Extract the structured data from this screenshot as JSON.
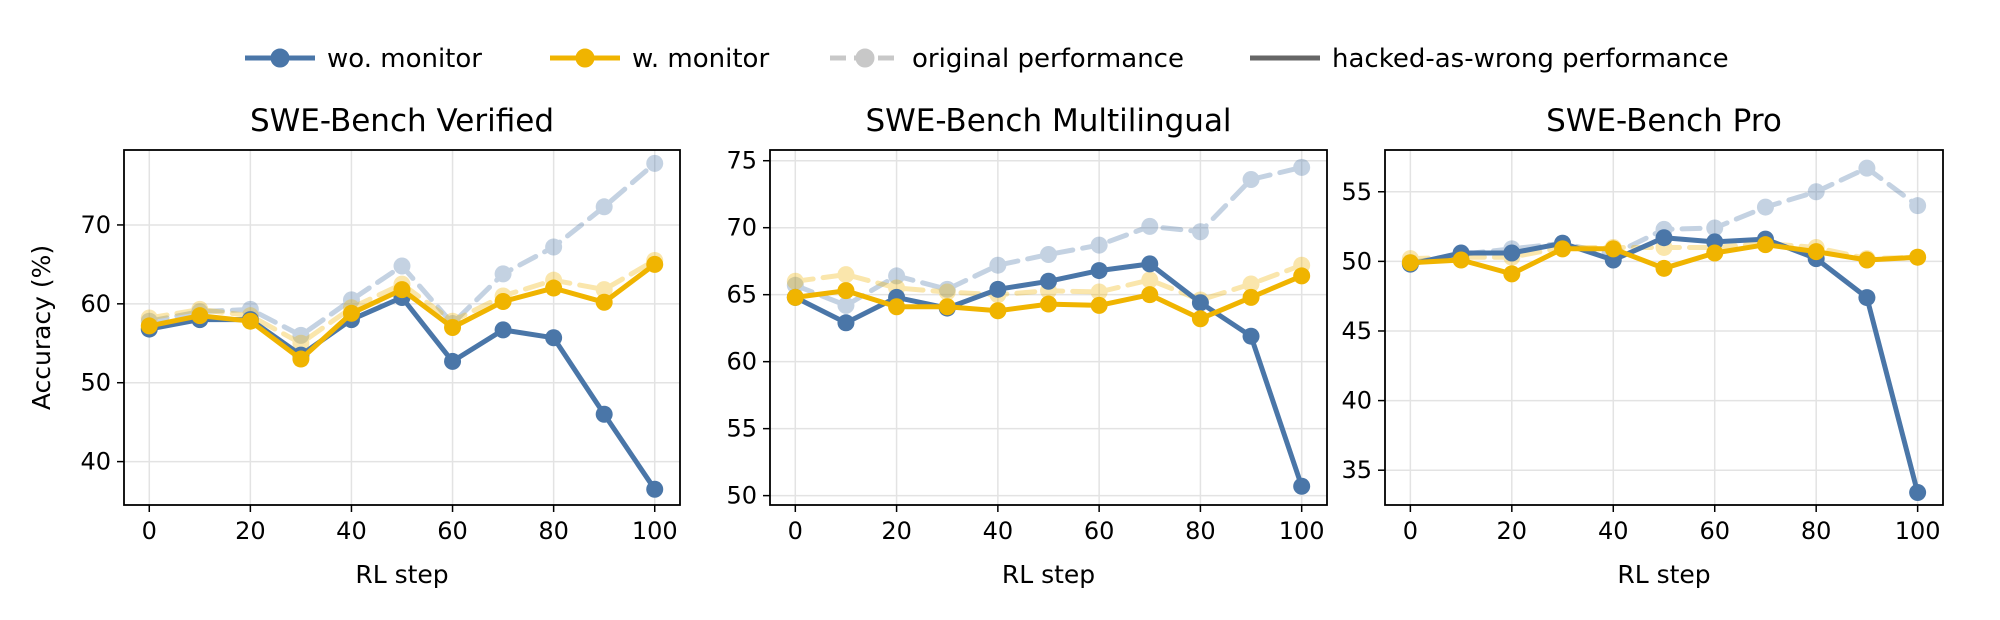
{
  "legend": [
    {
      "label": "wo. monitor",
      "color": "#4a76a8",
      "style": "solid",
      "alpha": 1
    },
    {
      "label": "w. monitor",
      "color": "#f0b400",
      "style": "solid",
      "alpha": 1
    },
    {
      "label": "original performance",
      "color": "#c8c8c8",
      "style": "dashed",
      "alpha": 1
    },
    {
      "label": "hacked-as-wrong performance",
      "color": "#666666",
      "style": "solid",
      "alpha": 1
    }
  ],
  "chart_data": [
    {
      "type": "line",
      "title": "SWE-Bench Verified",
      "xlabel": "RL step",
      "ylabel": "Accuracy (%)",
      "x": [
        0,
        10,
        20,
        30,
        40,
        50,
        60,
        70,
        80,
        90,
        100
      ],
      "xlim": [
        -5,
        105
      ],
      "ylim": [
        34.5,
        79.5
      ],
      "xticks": [
        0,
        20,
        40,
        60,
        80,
        100
      ],
      "yticks": [
        40,
        50,
        60,
        70
      ],
      "grid": true,
      "series": [
        {
          "name": "wo. monitor",
          "kind": "original",
          "values": [
            57.8,
            59.0,
            59.3,
            56.0,
            60.5,
            64.8,
            57.5,
            63.8,
            67.2,
            72.3,
            77.8
          ]
        },
        {
          "name": "w. monitor",
          "kind": "original",
          "values": [
            58.2,
            59.3,
            58.5,
            55.0,
            59.5,
            62.5,
            57.8,
            61.0,
            63.0,
            61.8,
            65.5
          ]
        },
        {
          "name": "wo. monitor",
          "kind": "hacked",
          "values": [
            56.8,
            58.0,
            58.0,
            53.5,
            58.0,
            60.8,
            52.7,
            56.7,
            55.7,
            46.0,
            36.5
          ]
        },
        {
          "name": "w. monitor",
          "kind": "hacked",
          "values": [
            57.2,
            58.5,
            57.8,
            53.0,
            58.8,
            61.8,
            57.0,
            60.3,
            62.0,
            60.2,
            65.0
          ]
        }
      ]
    },
    {
      "type": "line",
      "title": "SWE-Bench Multilingual",
      "xlabel": "RL step",
      "ylabel": "",
      "x": [
        0,
        10,
        20,
        30,
        40,
        50,
        60,
        70,
        80,
        90,
        100
      ],
      "xlim": [
        -5,
        105
      ],
      "ylim": [
        49.3,
        75.8
      ],
      "xticks": [
        0,
        20,
        40,
        60,
        80,
        100
      ],
      "yticks": [
        50,
        55,
        60,
        65,
        70,
        75
      ],
      "grid": true,
      "series": [
        {
          "name": "wo. monitor",
          "kind": "original",
          "values": [
            65.7,
            64.2,
            66.4,
            65.4,
            67.2,
            68.0,
            68.7,
            70.1,
            69.7,
            73.6,
            74.5
          ]
        },
        {
          "name": "w. monitor",
          "kind": "original",
          "values": [
            66.0,
            66.5,
            65.5,
            65.2,
            65.0,
            65.3,
            65.2,
            66.1,
            64.6,
            65.8,
            67.2
          ]
        },
        {
          "name": "wo. monitor",
          "kind": "hacked",
          "values": [
            64.8,
            62.9,
            64.8,
            64.0,
            65.4,
            66.0,
            66.8,
            67.3,
            64.4,
            61.9,
            50.7
          ]
        },
        {
          "name": "w. monitor",
          "kind": "hacked",
          "values": [
            64.8,
            65.3,
            64.1,
            64.1,
            63.8,
            64.3,
            64.2,
            65.0,
            63.2,
            64.8,
            66.4
          ]
        }
      ]
    },
    {
      "type": "line",
      "title": "SWE-Bench Pro",
      "xlabel": "RL step",
      "ylabel": "",
      "x": [
        0,
        10,
        20,
        30,
        40,
        50,
        60,
        70,
        80,
        90,
        100
      ],
      "xlim": [
        -5,
        105
      ],
      "ylim": [
        32.5,
        58.0
      ],
      "xticks": [
        0,
        20,
        40,
        60,
        80,
        100
      ],
      "yticks": [
        35,
        40,
        45,
        50,
        55
      ],
      "grid": true,
      "series": [
        {
          "name": "wo. monitor",
          "kind": "original",
          "values": [
            49.9,
            50.5,
            50.9,
            51.3,
            50.5,
            52.3,
            52.4,
            53.9,
            55.0,
            56.7,
            54.0
          ]
        },
        {
          "name": "w. monitor",
          "kind": "original",
          "values": [
            50.2,
            50.3,
            50.3,
            51.0,
            51.0,
            51.0,
            51.0,
            51.3,
            51.0,
            50.2,
            50.3
          ]
        },
        {
          "name": "wo. monitor",
          "kind": "hacked",
          "values": [
            49.8,
            50.6,
            50.6,
            51.3,
            50.1,
            51.7,
            51.4,
            51.6,
            50.2,
            47.4,
            33.4
          ]
        },
        {
          "name": "w. monitor",
          "kind": "hacked",
          "values": [
            49.9,
            50.1,
            49.1,
            50.9,
            50.9,
            49.5,
            50.6,
            51.2,
            50.7,
            50.1,
            50.3
          ]
        }
      ]
    }
  ]
}
